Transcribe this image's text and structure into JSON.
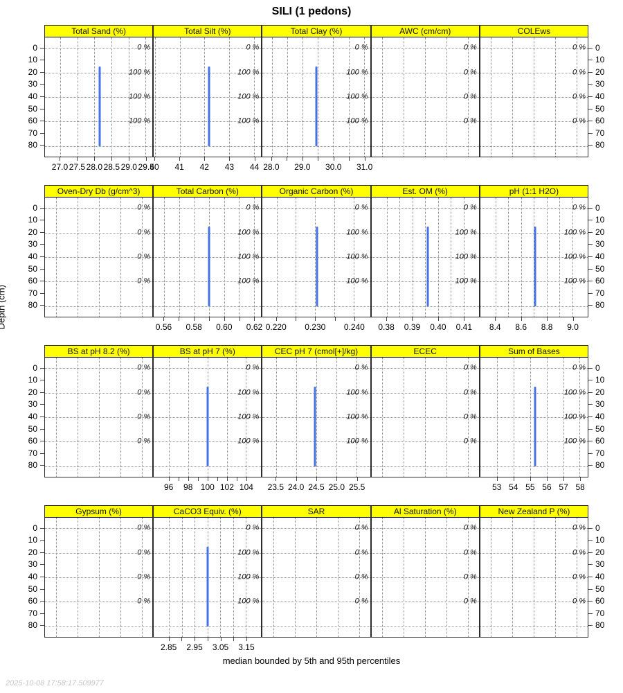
{
  "chart_data": {
    "type": "line",
    "title": "SILI (1 pedons)",
    "caption": "median bounded by 5th and 95th percentiles",
    "timestamp": "2025-10-08 17:58:17.509977",
    "ylabel": "Depth (cm)",
    "depth_ticks": [
      0,
      10,
      20,
      30,
      40,
      50,
      60,
      70,
      80
    ],
    "depth_gridlines": [
      0,
      20,
      40,
      60,
      80
    ],
    "depth_range": [
      -8.5,
      88.5
    ],
    "annotation_depths": [
      0,
      20,
      40,
      60
    ],
    "median_depth_span": [
      15,
      80
    ],
    "colors": {
      "strip": "#ffff00",
      "median_line": "#4472e4",
      "grid": "#8d8d8d"
    },
    "rows": [
      {
        "panels": [
          {
            "label": "Total Sand (%)",
            "xmin": 26.55,
            "xmax": 29.7,
            "median": 28.16,
            "grid": [
              27.0,
              27.5,
              28.0,
              28.5,
              29.0,
              29.5
            ],
            "ticks": [
              {
                "v": 27.0,
                "t": "27.0"
              },
              {
                "v": 27.5,
                "t": "27.5"
              },
              {
                "v": 28.0,
                "t": "28.0"
              },
              {
                "v": 28.5,
                "t": "28.5"
              },
              {
                "v": 29.0,
                "t": "29.0"
              },
              {
                "v": 29.5,
                "t": "29.5"
              }
            ],
            "contrib": [
              "0 %",
              "100 %",
              "100 %",
              "100 %"
            ]
          },
          {
            "label": "Total Silt (%)",
            "xmin": 39.95,
            "xmax": 44.3,
            "median": 42.2,
            "grid": [
              40,
              41,
              42,
              43,
              44
            ],
            "ticks": [
              {
                "v": 40,
                "t": "40"
              },
              {
                "v": 41,
                "t": "41"
              },
              {
                "v": 42,
                "t": "42"
              },
              {
                "v": 43,
                "t": "43"
              },
              {
                "v": 44,
                "t": "44"
              }
            ],
            "contrib": [
              "0 %",
              "100 %",
              "100 %",
              "100 %"
            ]
          },
          {
            "label": "Total Clay (%)",
            "xmin": 27.7,
            "xmax": 31.2,
            "median": 29.45,
            "grid": [
              28.0,
              28.5,
              29.0,
              29.5,
              30.0,
              30.5,
              31.0
            ],
            "ticks": [
              {
                "v": 28.0,
                "t": "28.0"
              },
              {
                "v": 28.5,
                "t": ""
              },
              {
                "v": 29.0,
                "t": "29.0"
              },
              {
                "v": 29.5,
                "t": ""
              },
              {
                "v": 30.0,
                "t": "30.0"
              },
              {
                "v": 30.5,
                "t": ""
              },
              {
                "v": 31.0,
                "t": "31.0"
              }
            ],
            "contrib": [
              "0 %",
              "100 %",
              "100 %",
              "100 %"
            ]
          },
          {
            "label": "AWC (cm/cm)",
            "xmin": 0,
            "xmax": 1,
            "median": null,
            "grid": [
              0.1,
              0.3,
              0.5,
              0.7,
              0.9
            ],
            "ticks": [],
            "contrib": [
              "0 %",
              "0 %",
              "0 %",
              "0 %"
            ]
          },
          {
            "label": "COLEws",
            "xmin": 0,
            "xmax": 1,
            "median": null,
            "grid": [
              0.1,
              0.3,
              0.5,
              0.7,
              0.9
            ],
            "ticks": [],
            "contrib": [
              "0 %",
              "0 %",
              "0 %",
              "0 %"
            ]
          }
        ]
      },
      {
        "panels": [
          {
            "label": "Oven-Dry Db (g/cm^3)",
            "xmin": 0,
            "xmax": 1,
            "median": null,
            "grid": [
              0.1,
              0.3,
              0.5,
              0.7,
              0.9
            ],
            "ticks": [],
            "contrib": [
              "0 %",
              "0 %",
              "0 %",
              "0 %"
            ]
          },
          {
            "label": "Total Carbon (%)",
            "xmin": 0.553,
            "xmax": 0.625,
            "median": 0.59,
            "grid": [
              0.56,
              0.57,
              0.58,
              0.59,
              0.6,
              0.61,
              0.62
            ],
            "ticks": [
              {
                "v": 0.56,
                "t": "0.56"
              },
              {
                "v": 0.57,
                "t": ""
              },
              {
                "v": 0.58,
                "t": "0.58"
              },
              {
                "v": 0.59,
                "t": ""
              },
              {
                "v": 0.6,
                "t": "0.60"
              },
              {
                "v": 0.61,
                "t": ""
              },
              {
                "v": 0.62,
                "t": "0.62"
              }
            ],
            "contrib": [
              "0 %",
              "100 %",
              "100 %",
              "100 %"
            ]
          },
          {
            "label": "Organic Carbon (%)",
            "xmin": 0.2164,
            "xmax": 0.2442,
            "median": 0.2305,
            "grid": [
              0.22,
              0.225,
              0.23,
              0.235,
              0.24
            ],
            "ticks": [
              {
                "v": 0.22,
                "t": "0.220"
              },
              {
                "v": 0.225,
                "t": ""
              },
              {
                "v": 0.23,
                "t": "0.230"
              },
              {
                "v": 0.235,
                "t": ""
              },
              {
                "v": 0.24,
                "t": "0.240"
              }
            ],
            "contrib": [
              "0 %",
              "100 %",
              "100 %",
              "100 %"
            ]
          },
          {
            "label": "Est. OM (%)",
            "xmin": 0.374,
            "xmax": 0.416,
            "median": 0.396,
            "grid": [
              0.38,
              0.385,
              0.39,
              0.395,
              0.4,
              0.405,
              0.41
            ],
            "ticks": [
              {
                "v": 0.38,
                "t": "0.38"
              },
              {
                "v": 0.39,
                "t": "0.39"
              },
              {
                "v": 0.4,
                "t": "0.40"
              },
              {
                "v": 0.41,
                "t": "0.41"
              }
            ],
            "contrib": [
              "0 %",
              "100 %",
              "100 %",
              "100 %"
            ]
          },
          {
            "label": "pH (1:1 H2O)",
            "xmin": 8.28,
            "xmax": 9.12,
            "median": 8.71,
            "grid": [
              8.4,
              8.5,
              8.6,
              8.7,
              8.8,
              8.9,
              9.0
            ],
            "ticks": [
              {
                "v": 8.4,
                "t": "8.4"
              },
              {
                "v": 8.6,
                "t": "8.6"
              },
              {
                "v": 8.8,
                "t": "8.8"
              },
              {
                "v": 9.0,
                "t": "9.0"
              }
            ],
            "contrib": [
              "0 %",
              "100 %",
              "100 %",
              "100 %"
            ]
          }
        ]
      },
      {
        "panels": [
          {
            "label": "BS at pH 8.2 (%)",
            "xmin": 0,
            "xmax": 1,
            "median": null,
            "grid": [
              0.1,
              0.3,
              0.5,
              0.7,
              0.9
            ],
            "ticks": [],
            "contrib": [
              "0 %",
              "0 %",
              "0 %",
              "0 %"
            ]
          },
          {
            "label": "BS at pH 7 (%)",
            "xmin": 94.4,
            "xmax": 105.6,
            "median": 100,
            "grid": [
              96,
              98,
              100,
              102,
              104
            ],
            "ticks": [
              {
                "v": 96,
                "t": "96"
              },
              {
                "v": 97,
                "t": ""
              },
              {
                "v": 98,
                "t": "98"
              },
              {
                "v": 99,
                "t": ""
              },
              {
                "v": 100,
                "t": "100"
              },
              {
                "v": 101,
                "t": ""
              },
              {
                "v": 102,
                "t": "102"
              },
              {
                "v": 103,
                "t": ""
              },
              {
                "v": 104,
                "t": "104"
              }
            ],
            "contrib": [
              "0 %",
              "100 %",
              "100 %",
              "100 %"
            ]
          },
          {
            "label": "CEC pH 7 (cmol[+]/kg)",
            "xmin": 23.16,
            "xmax": 25.84,
            "median": 24.46,
            "grid": [
              23.5,
              24.0,
              24.5,
              25.0,
              25.5
            ],
            "ticks": [
              {
                "v": 23.5,
                "t": "23.5"
              },
              {
                "v": 24.0,
                "t": "24.0"
              },
              {
                "v": 24.5,
                "t": "24.5"
              },
              {
                "v": 25.0,
                "t": "25.0"
              },
              {
                "v": 25.5,
                "t": "25.5"
              }
            ],
            "contrib": [
              "0 %",
              "100 %",
              "100 %",
              "100 %"
            ]
          },
          {
            "label": "ECEC",
            "xmin": 0,
            "xmax": 1,
            "median": null,
            "grid": [
              0.1,
              0.3,
              0.5,
              0.7,
              0.9
            ],
            "ticks": [],
            "contrib": [
              "0 %",
              "0 %",
              "0 %",
              "0 %"
            ]
          },
          {
            "label": "Sum of Bases",
            "xmin": 51.97,
            "xmax": 58.49,
            "median": 55.3,
            "grid": [
              53,
              54,
              55,
              56,
              57,
              58
            ],
            "ticks": [
              {
                "v": 53,
                "t": "53"
              },
              {
                "v": 54,
                "t": "54"
              },
              {
                "v": 55,
                "t": "55"
              },
              {
                "v": 56,
                "t": "56"
              },
              {
                "v": 57,
                "t": "57"
              },
              {
                "v": 58,
                "t": "58"
              }
            ],
            "contrib": [
              "0 %",
              "100 %",
              "100 %",
              "100 %"
            ]
          }
        ]
      },
      {
        "panels": [
          {
            "label": "Gypsum (%)",
            "xmin": 0,
            "xmax": 1,
            "median": null,
            "grid": [
              0.1,
              0.3,
              0.5,
              0.7,
              0.9
            ],
            "ticks": [],
            "contrib": [
              "0 %",
              "0 %",
              "0 %",
              "0 %"
            ]
          },
          {
            "label": "CaCO3 Equiv. (%)",
            "xmin": 2.79,
            "xmax": 3.21,
            "median": 3.0,
            "grid": [
              2.85,
              2.9,
              2.95,
              3.0,
              3.05,
              3.1,
              3.15
            ],
            "ticks": [
              {
                "v": 2.85,
                "t": "2.85"
              },
              {
                "v": 2.9,
                "t": ""
              },
              {
                "v": 2.95,
                "t": "2.95"
              },
              {
                "v": 3.0,
                "t": ""
              },
              {
                "v": 3.05,
                "t": "3.05"
              },
              {
                "v": 3.1,
                "t": ""
              },
              {
                "v": 3.15,
                "t": "3.15"
              }
            ],
            "contrib": [
              "0 %",
              "100 %",
              "100 %",
              "100 %"
            ]
          },
          {
            "label": "SAR",
            "xmin": 0,
            "xmax": 1,
            "median": null,
            "grid": [
              0.1,
              0.3,
              0.5,
              0.7,
              0.9
            ],
            "ticks": [],
            "contrib": [
              "0 %",
              "0 %",
              "0 %",
              "0 %"
            ]
          },
          {
            "label": "Al Saturation (%)",
            "xmin": 0,
            "xmax": 1,
            "median": null,
            "grid": [
              0.1,
              0.3,
              0.5,
              0.7,
              0.9
            ],
            "ticks": [],
            "contrib": [
              "0 %",
              "0 %",
              "0 %",
              "0 %"
            ]
          },
          {
            "label": "New Zealand P (%)",
            "xmin": 0,
            "xmax": 1,
            "median": null,
            "grid": [
              0.1,
              0.3,
              0.5,
              0.7,
              0.9
            ],
            "ticks": [],
            "contrib": [
              "0 %",
              "0 %",
              "0 %",
              "0 %"
            ]
          }
        ]
      }
    ]
  }
}
